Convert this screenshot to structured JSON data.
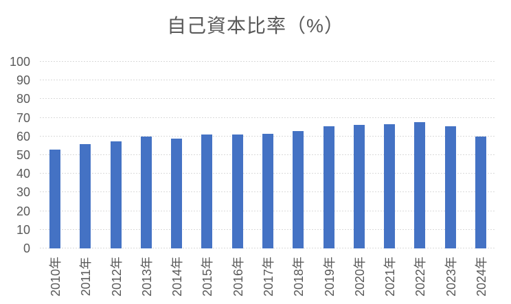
{
  "chart_data": {
    "type": "bar",
    "title": "自己資本比率（%）",
    "categories": [
      "2010年",
      "2011年",
      "2012年",
      "2013年",
      "2014年",
      "2015年",
      "2016年",
      "2017年",
      "2018年",
      "2019年",
      "2020年",
      "2021年",
      "2022年",
      "2023年",
      "2024年"
    ],
    "values": [
      53,
      56,
      57.5,
      60,
      59,
      61,
      61,
      61.5,
      63,
      65.5,
      66,
      66.5,
      67.5,
      65.5,
      60
    ],
    "xlabel": "",
    "ylabel": "",
    "ylim": [
      0,
      100
    ],
    "yticks": [
      0,
      10,
      20,
      30,
      40,
      50,
      60,
      70,
      80,
      90,
      100
    ],
    "grid": true,
    "gridline_style": "dashed",
    "legend": "none",
    "x_label_rotation": -90,
    "colors": {
      "bar": "#4472C4",
      "gridline": "#D9D9D9",
      "title_text": "#595959",
      "tick_text": "#595959",
      "background": "#FFFFFF"
    }
  }
}
